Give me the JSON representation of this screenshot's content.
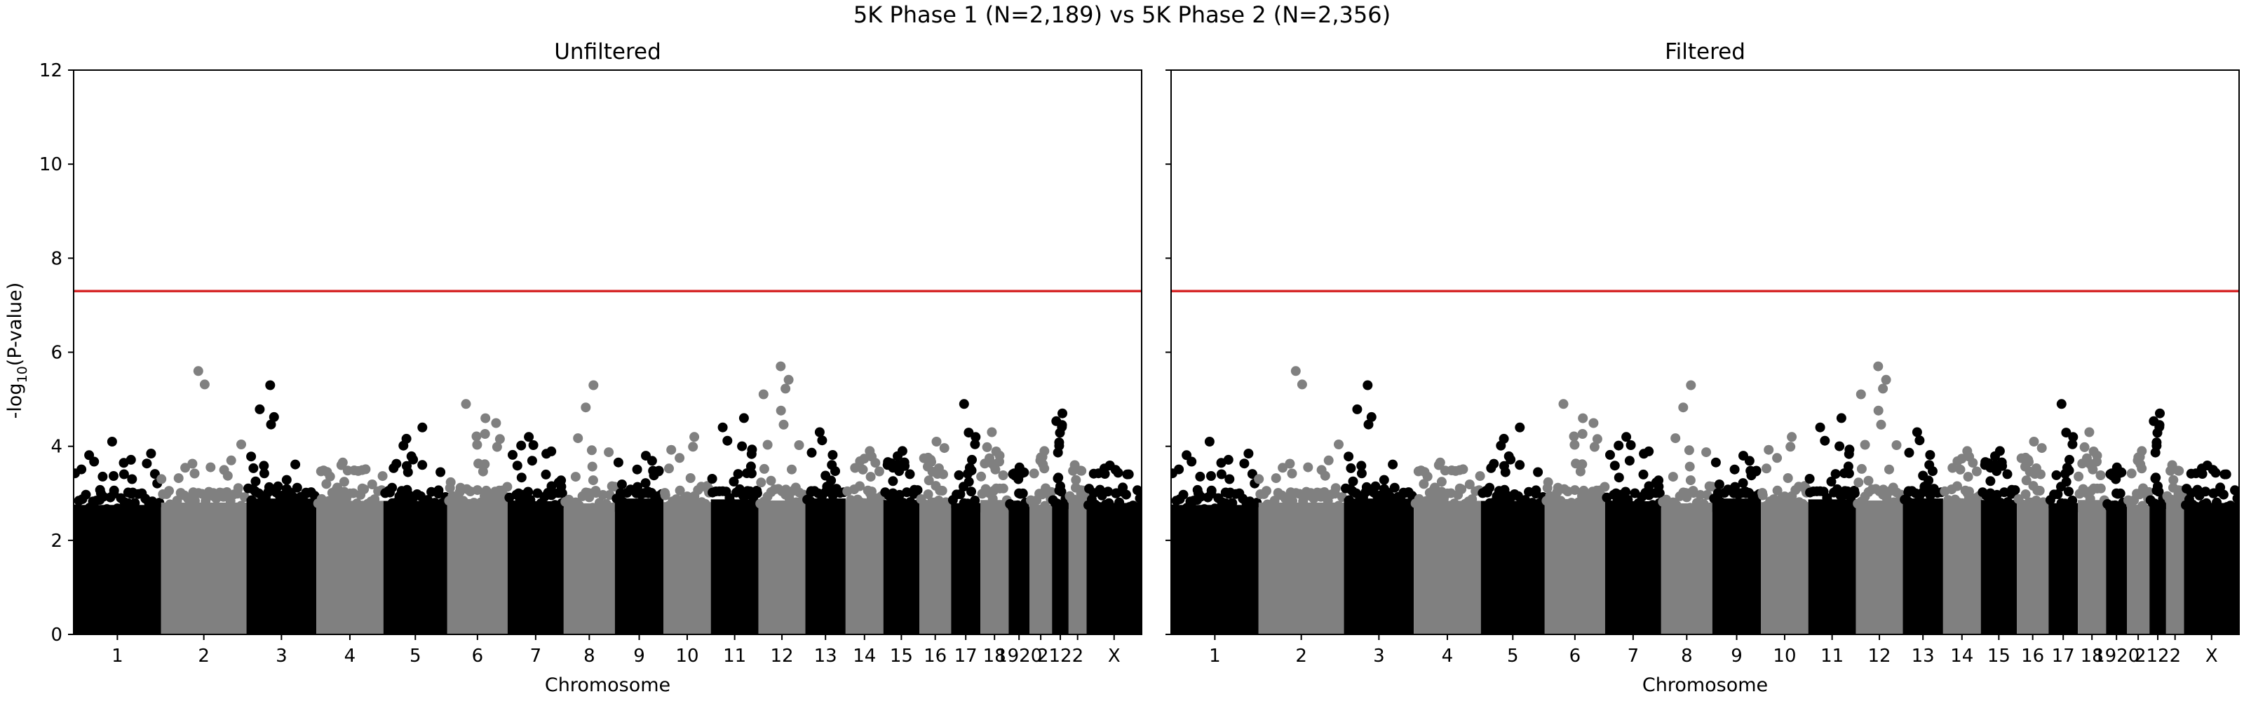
{
  "figure": {
    "suptitle": "5K Phase 1 (N=2,189) vs 5K Phase 2 (N=2,356)"
  },
  "chart_data": [
    {
      "type": "scatter",
      "title": "Unfiltered",
      "xlabel": "Chromosome",
      "ylabel": "-log10(P-value)",
      "ylim": [
        0,
        12
      ],
      "yticks": [
        0,
        2,
        4,
        6,
        8,
        10,
        12
      ],
      "threshold": 7.3,
      "threshold_color": "#d62728",
      "colors": [
        "#000000",
        "#808080"
      ],
      "chromosomes": [
        "1",
        "2",
        "3",
        "4",
        "5",
        "6",
        "7",
        "8",
        "9",
        "10",
        "11",
        "12",
        "13",
        "14",
        "15",
        "16",
        "17",
        "18",
        "19",
        "20",
        "21",
        "22",
        "X"
      ],
      "chromosome_xtick_labels": [
        "1",
        "2",
        "3",
        "4",
        "5",
        "6",
        "7",
        "8",
        "9",
        "10",
        "11",
        "12",
        "13",
        "14",
        "15",
        "16",
        "17",
        "18",
        "1920",
        "",
        "2122",
        "",
        "X"
      ],
      "chromosome_sizes": [
        248,
        242,
        198,
        190,
        181,
        171,
        159,
        145,
        138,
        134,
        135,
        133,
        114,
        107,
        102,
        90,
        83,
        80,
        59,
        64,
        47,
        51,
        156
      ],
      "max_values": [
        4.1,
        5.6,
        5.3,
        3.6,
        4.4,
        4.9,
        4.2,
        5.3,
        3.8,
        4.2,
        4.6,
        5.7,
        4.3,
        3.9,
        3.9,
        4.1,
        4.9,
        4.3,
        3.3,
        3.9,
        4.7,
        3.6,
        3.5
      ],
      "grid": false,
      "legend": "none"
    },
    {
      "type": "scatter",
      "title": "Filtered",
      "xlabel": "Chromosome",
      "ylabel": "",
      "ylim": [
        0,
        12
      ],
      "yticks": [
        0,
        2,
        4,
        6,
        8,
        10,
        12
      ],
      "threshold": 7.3,
      "threshold_color": "#d62728",
      "colors": [
        "#000000",
        "#808080"
      ],
      "chromosomes": [
        "1",
        "2",
        "3",
        "4",
        "5",
        "6",
        "7",
        "8",
        "9",
        "10",
        "11",
        "12",
        "13",
        "14",
        "15",
        "16",
        "17",
        "18",
        "19",
        "20",
        "21",
        "22",
        "X"
      ],
      "chromosome_xtick_labels": [
        "1",
        "2",
        "3",
        "4",
        "5",
        "6",
        "7",
        "8",
        "9",
        "10",
        "11",
        "12",
        "13",
        "14",
        "15",
        "16",
        "17",
        "18",
        "1920",
        "",
        "2122",
        "",
        "X"
      ],
      "chromosome_sizes": [
        248,
        242,
        198,
        190,
        181,
        171,
        159,
        145,
        138,
        134,
        135,
        133,
        114,
        107,
        102,
        90,
        83,
        80,
        59,
        64,
        47,
        51,
        156
      ],
      "max_values": [
        4.1,
        5.6,
        5.3,
        3.6,
        4.4,
        4.9,
        4.2,
        5.3,
        3.8,
        4.2,
        4.6,
        5.7,
        4.3,
        3.9,
        3.9,
        4.1,
        4.9,
        4.3,
        3.3,
        3.9,
        4.7,
        3.6,
        3.5
      ],
      "grid": false,
      "legend": "none"
    }
  ]
}
